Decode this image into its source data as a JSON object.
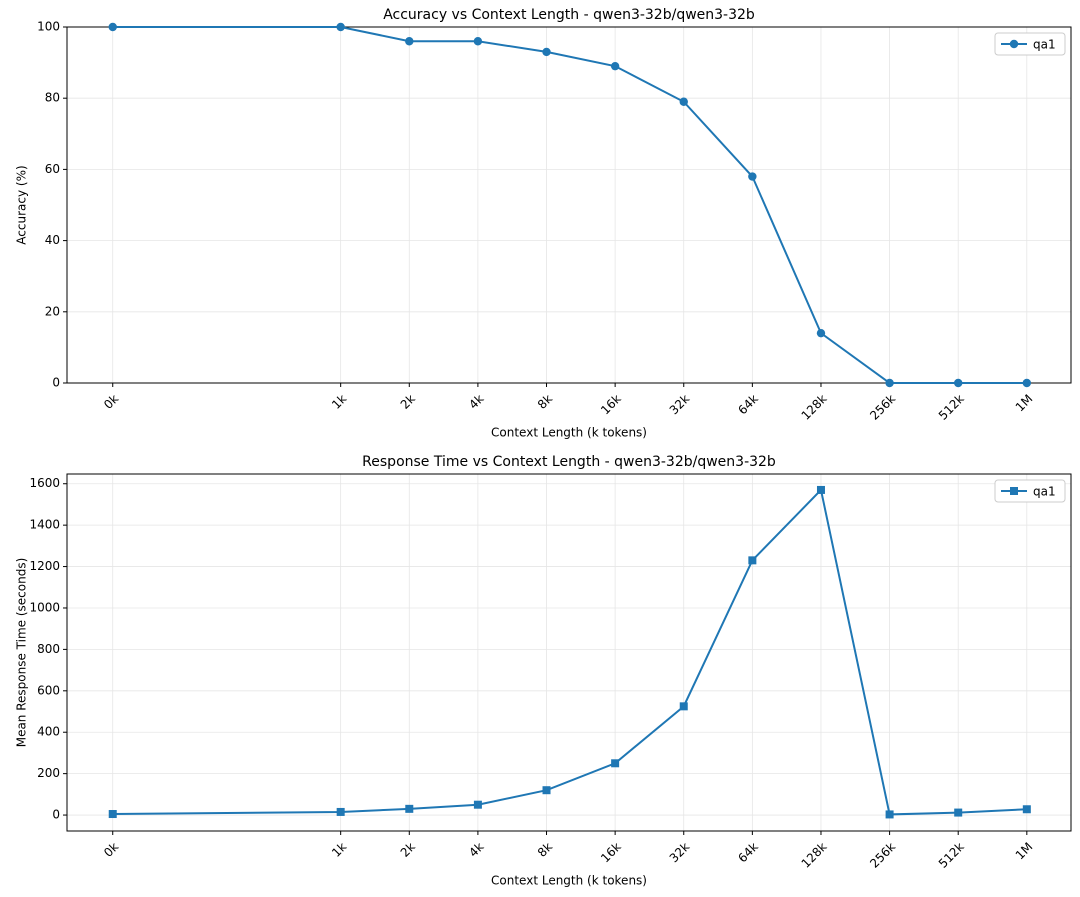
{
  "chart_data": [
    {
      "type": "line",
      "title": "Accuracy vs Context Length - qwen3-32b/qwen3-32b",
      "xlabel": "Context Length (k tokens)",
      "ylabel": "Accuracy (%)",
      "x": [
        0.1,
        1,
        2,
        4,
        8,
        16,
        32,
        64,
        128,
        256,
        512,
        1024
      ],
      "series": [
        {
          "name": "qa1",
          "color": "#1f77b4",
          "marker": "circle",
          "values": [
            100,
            100,
            96,
            96,
            93,
            89,
            79,
            58,
            14,
            0,
            0,
            0
          ]
        }
      ],
      "log_x": true,
      "xlim": [
        0.063,
        1600
      ],
      "ylim": [
        0,
        100
      ],
      "xticks": [
        {
          "value": 0.1,
          "label": "0k"
        },
        {
          "value": 1,
          "label": "1k"
        },
        {
          "value": 2,
          "label": "2k"
        },
        {
          "value": 4,
          "label": "4k"
        },
        {
          "value": 8,
          "label": "8k"
        },
        {
          "value": 16,
          "label": "16k"
        },
        {
          "value": 32,
          "label": "32k"
        },
        {
          "value": 64,
          "label": "64k"
        },
        {
          "value": 128,
          "label": "128k"
        },
        {
          "value": 256,
          "label": "256k"
        },
        {
          "value": 512,
          "label": "512k"
        },
        {
          "value": 1024,
          "label": "1M"
        }
      ],
      "yticks": [
        0,
        20,
        40,
        60,
        80,
        100
      ],
      "grid": true,
      "legend": "upper right"
    },
    {
      "type": "line",
      "title": "Response Time vs Context Length - qwen3-32b/qwen3-32b",
      "xlabel": "Context Length (k tokens)",
      "ylabel": "Mean Response Time (seconds)",
      "x": [
        0.1,
        1,
        2,
        4,
        8,
        16,
        32,
        64,
        128,
        256,
        512,
        1024
      ],
      "series": [
        {
          "name": "qa1",
          "color": "#1f77b4",
          "marker": "square",
          "values": [
            5,
            15,
            30,
            50,
            120,
            250,
            525,
            1230,
            1570,
            3,
            12,
            28
          ]
        }
      ],
      "log_x": true,
      "xlim": [
        0.063,
        1600
      ],
      "ylim": [
        -77,
        1647
      ],
      "xticks": [
        {
          "value": 0.1,
          "label": "0k"
        },
        {
          "value": 1,
          "label": "1k"
        },
        {
          "value": 2,
          "label": "2k"
        },
        {
          "value": 4,
          "label": "4k"
        },
        {
          "value": 8,
          "label": "8k"
        },
        {
          "value": 16,
          "label": "16k"
        },
        {
          "value": 32,
          "label": "32k"
        },
        {
          "value": 64,
          "label": "64k"
        },
        {
          "value": 128,
          "label": "128k"
        },
        {
          "value": 256,
          "label": "256k"
        },
        {
          "value": 512,
          "label": "512k"
        },
        {
          "value": 1024,
          "label": "1M"
        }
      ],
      "yticks": [
        0,
        200,
        400,
        600,
        800,
        1000,
        1200,
        1400,
        1600
      ],
      "grid": true,
      "legend": "upper right"
    }
  ]
}
